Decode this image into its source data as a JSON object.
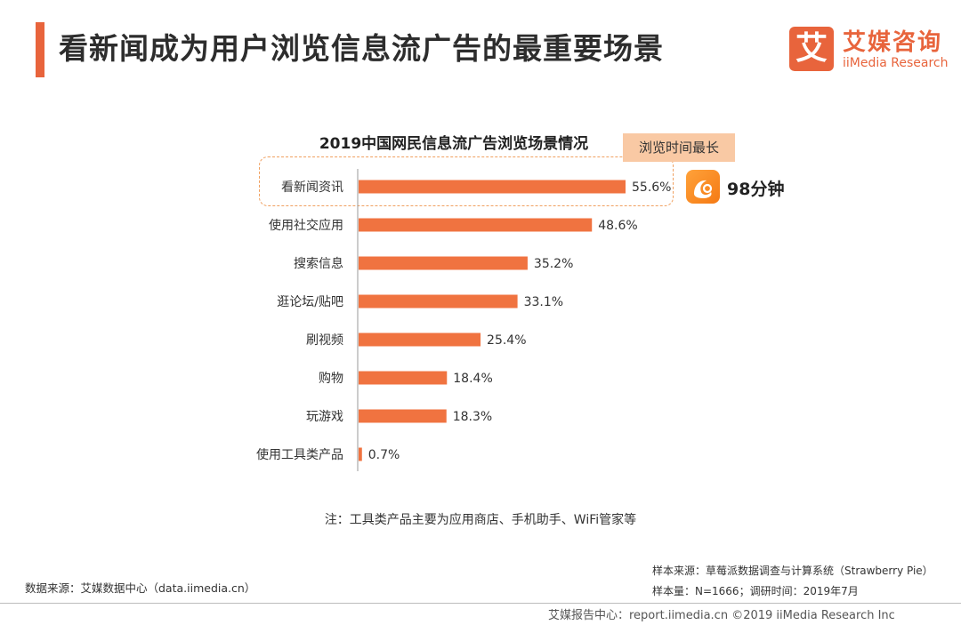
{
  "page": {
    "title": "看新闻成为用户浏览信息流广告的最重要场景",
    "accent_color": "#e8643c",
    "bar_color": "#f07340"
  },
  "logo": {
    "mark": "艾",
    "name_cn": "艾媒咨询",
    "name_en": "iiMedia Research"
  },
  "highlight": {
    "tag": "浏览时间最长",
    "app_icon": "uc-browser-icon",
    "time": "98分钟"
  },
  "chart_data": {
    "type": "bar",
    "orientation": "horizontal",
    "title": "2019中国网民信息流广告浏览场景情况",
    "categories": [
      "看新闻资讯",
      "使用社交应用",
      "搜索信息",
      "逛论坛/贴吧",
      "刷视频",
      "购物",
      "玩游戏",
      "使用工具类产品"
    ],
    "values": [
      55.6,
      48.6,
      35.2,
      33.1,
      25.4,
      18.4,
      18.3,
      0.7
    ],
    "value_labels": [
      "55.6%",
      "48.6%",
      "35.2%",
      "33.1%",
      "25.4%",
      "18.4%",
      "18.3%",
      "0.7%"
    ],
    "unit": "%",
    "xlim": [
      0,
      60
    ],
    "grid": false,
    "legend": "none"
  },
  "note": "注：工具类产品主要为应用商店、手机助手、WiFi管家等",
  "sources": {
    "data_source": "数据来源：艾媒数据中心（data.iimedia.cn）",
    "sample_source": "样本来源：草莓派数据调查与计算系统（Strawberry Pie）",
    "sample_size": "样本量：N=1666；调研时间：2019年7月"
  },
  "footer": "艾媒报告中心：report.iimedia.cn  ©2019  iiMedia Research Inc"
}
